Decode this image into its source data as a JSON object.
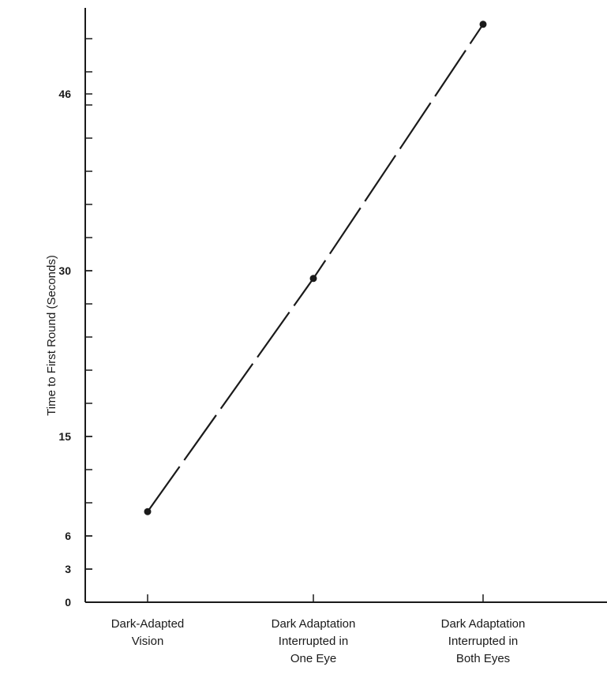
{
  "chart_data": {
    "type": "line",
    "categories": [
      [
        "Dark-Adapted",
        "Vision"
      ],
      [
        "Dark Adaptation",
        "Interrupted in",
        "One Eye"
      ],
      [
        "Dark Adaptation",
        "Interrupted in",
        "Both Eyes"
      ]
    ],
    "values": [
      8.2,
      29.3,
      52.3
    ],
    "ylabel": "Time to First Round (Seconds)",
    "xlabel": "",
    "ylim": [
      0,
      53.5
    ],
    "ytick_labels": [
      0,
      3,
      6,
      15,
      30,
      46
    ],
    "yticks_minor": [
      0,
      3,
      6,
      9,
      12,
      15,
      18,
      21,
      24,
      27,
      30,
      33,
      36,
      39,
      42,
      45,
      48,
      51,
      54
    ],
    "grid": false,
    "legend": "none",
    "color": "#1a1a1a"
  }
}
